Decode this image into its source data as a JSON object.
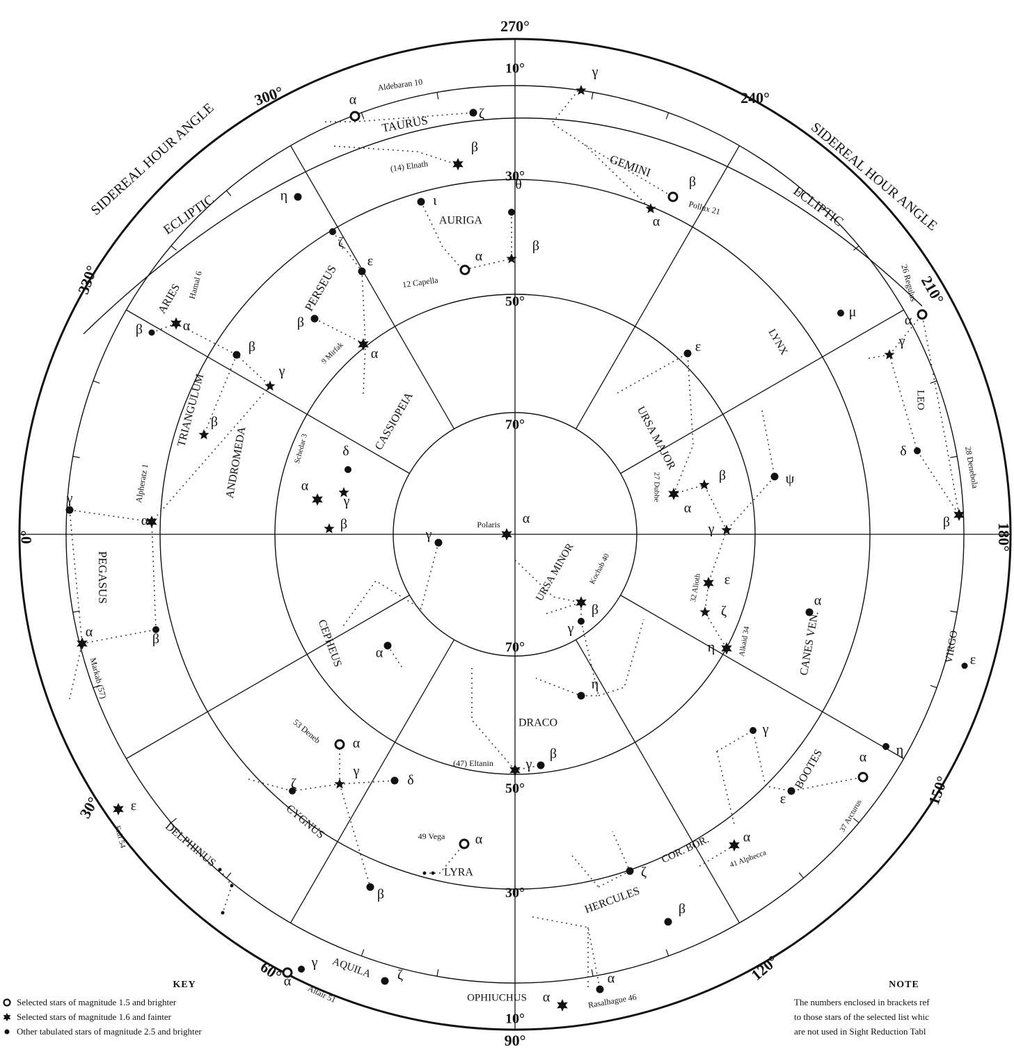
{
  "map": {
    "sha_labels": [
      "270°",
      "240°",
      "210°",
      "180°",
      "150°",
      "120°",
      "90°",
      "60°",
      "30°",
      "0°",
      "330°",
      "300°"
    ],
    "band_labels": {
      "sha_title": "SIDEREAL HOUR ANGLE",
      "ecliptic": "ECLIPTIC"
    },
    "dec_labels": [
      "10°",
      "30°",
      "50°",
      "70°",
      "70°",
      "50°",
      "30°",
      "10°"
    ],
    "constellations": [
      "TAURUS",
      "GEMINI",
      "AURIGA",
      "PERSEUS",
      "ARIES",
      "TRIANGULUM",
      "ANDROMEDA",
      "CASSIOPEIA",
      "LYNX",
      "URSA MAJOR",
      "LEO",
      "PEGASUS",
      "URSA MINOR",
      "CEPHEUS",
      "DRACO",
      "CANES VEN.",
      "VIRGO",
      "BOOTES",
      "CYGNUS",
      "LYRA",
      "DELPHINUS",
      "COR. BOR.",
      "HERCULES",
      "AQUILA",
      "OPHIUCHUS"
    ],
    "stars": [
      "Aldebaran 10",
      "(14) Elnath",
      "12 Capella",
      "Pollux 21",
      "26 Regulus",
      "9 Mirfak",
      "Hamal 6",
      "Schedar 3",
      "Alpheratz 1",
      "Polaris",
      "Kochab 40",
      "27 Dubhe",
      "28 Denebola",
      "32 Alioth",
      "Alkaid 34",
      "Markab (57)",
      "53 Deneb",
      "(47) Eltanin",
      "Enif 54",
      "49 Vega",
      "37 Arcturus",
      "41 Alphecca",
      "Altair 51",
      "Rasalhague 46"
    ],
    "greek": {
      "alpha": "α",
      "beta": "β",
      "gamma": "γ",
      "delta": "δ",
      "epsilon": "ε",
      "zeta": "ζ",
      "eta": "η",
      "theta": "θ",
      "iota": "ι",
      "mu": "μ"
    }
  },
  "key": {
    "title": "KEY",
    "items": [
      "Selected stars of magnitude 1.5 and brighter",
      "Selected stars of magnitude 1.6 and fainter",
      "Other tabulated stars of magnitude 2.5 and brighter"
    ]
  },
  "note": {
    "title": "NOTE",
    "text": "The numbers enclosed in brackets ref\nto those stars of the selected list whic\nare not used in Sight Reduction Tabl"
  }
}
